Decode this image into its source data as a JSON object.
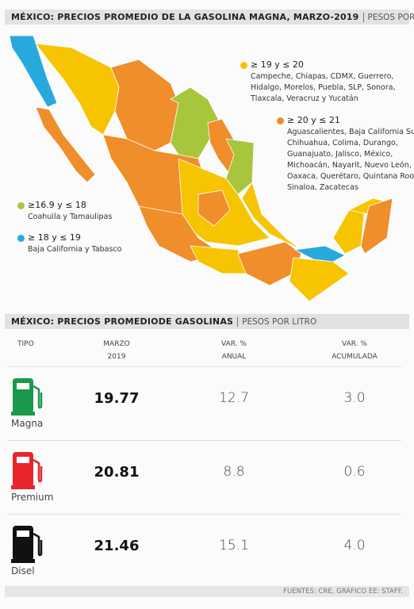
{
  "map": {
    "title": "MÉXICO: PRECIOS PROMEDIO DE LA GASOLINA MAGNA, MARZO-2019",
    "unit": "PESOS POR LITRO",
    "legend": [
      {
        "label": "≥ 19 y ≤ 20",
        "states": "Campeche, Chiapas, CDMX, Guerrero, Hidalgo, Morelos, Puebla, SLP, Sonora, Tlaxcala, Veracruz y Yucatán",
        "color": "#f6c400"
      },
      {
        "label": "≥ 20 y ≤ 21",
        "states": "Aguascalientes, Baja California Sur, Chihuahua, Colima, Durango, Guanajuato, Jalisco, México, Michoacán, Nayarit, Nuevo León, Oaxaca, Querétaro, Quintana Roo, Sinaloa, Zacatecas",
        "color": "#ef8e2a"
      },
      {
        "label": "≥16.9 y ≤ 18",
        "states": "Coahuila y Tamaulipas",
        "color": "#a8c63c"
      },
      {
        "label": "≥ 18 y ≤ 19",
        "states": "Baja California y Tabasco",
        "color": "#27a9de"
      }
    ]
  },
  "table": {
    "title": "MÉXICO: PRECIOS PROMEDIODE GASOLINAS",
    "unit": "PESOS POR LITRO",
    "columns": [
      [
        "TIPO"
      ],
      [
        "MARZO",
        "2019"
      ],
      [
        "VAR. %",
        "ANUAL"
      ],
      [
        "VAR. %",
        "ACUMULADA"
      ]
    ],
    "rows": [
      [
        "Magna",
        "19.77",
        "12.7",
        "3.0"
      ],
      [
        "Premium",
        "20.81",
        "8.8",
        "0.6"
      ],
      [
        "Disel",
        "21.46",
        "15.1",
        "4.0"
      ]
    ]
  },
  "footer": "FUENTES: CRE, GRÁFICO EE: STAFF."
}
